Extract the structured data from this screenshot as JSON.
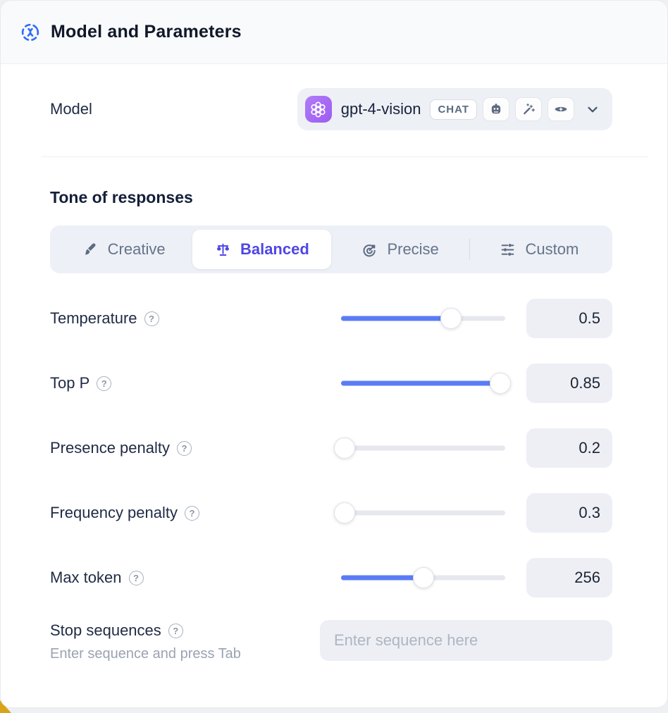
{
  "header": {
    "title": "Model and Parameters",
    "icon": "model-hub-icon",
    "accent_blue": "#2f6bfd"
  },
  "model": {
    "label": "Model",
    "name": "gpt-4-vision",
    "provider_icon": "openai-logo-icon",
    "provider_color": "#a06af5",
    "type_badge": "CHAT",
    "capability_icons": [
      "robot-icon",
      "magic-wand-icon",
      "vision-eye-icon"
    ]
  },
  "tone": {
    "label": "Tone of responses",
    "selected_color": "#4f46e5",
    "options": [
      {
        "label": "Creative",
        "icon": "paintbrush-icon",
        "selected": false
      },
      {
        "label": "Balanced",
        "icon": "balance-scale-icon",
        "selected": true
      },
      {
        "label": "Precise",
        "icon": "target-arrow-icon",
        "selected": false
      },
      {
        "label": "Custom",
        "icon": "sliders-icon",
        "selected": false
      }
    ]
  },
  "parameters": [
    {
      "label": "Temperature",
      "value": "0.5",
      "fill_pct": 67
    },
    {
      "label": "Top P",
      "value": "0.85",
      "fill_pct": 97
    },
    {
      "label": "Presence penalty",
      "value": "0.2",
      "fill_pct": 2
    },
    {
      "label": "Frequency penalty",
      "value": "0.3",
      "fill_pct": 2
    },
    {
      "label": "Max token",
      "value": "256",
      "fill_pct": 50
    }
  ],
  "stop_sequences": {
    "label": "Stop sequences",
    "hint": "Enter sequence and press Tab",
    "placeholder": "Enter sequence here"
  },
  "colors": {
    "slider_fill": "#5b7cf5",
    "field_bg": "#edeff4",
    "header_bg": "#f8fafc",
    "muted_text": "#64748b",
    "corner_accent": "#d9a418"
  }
}
